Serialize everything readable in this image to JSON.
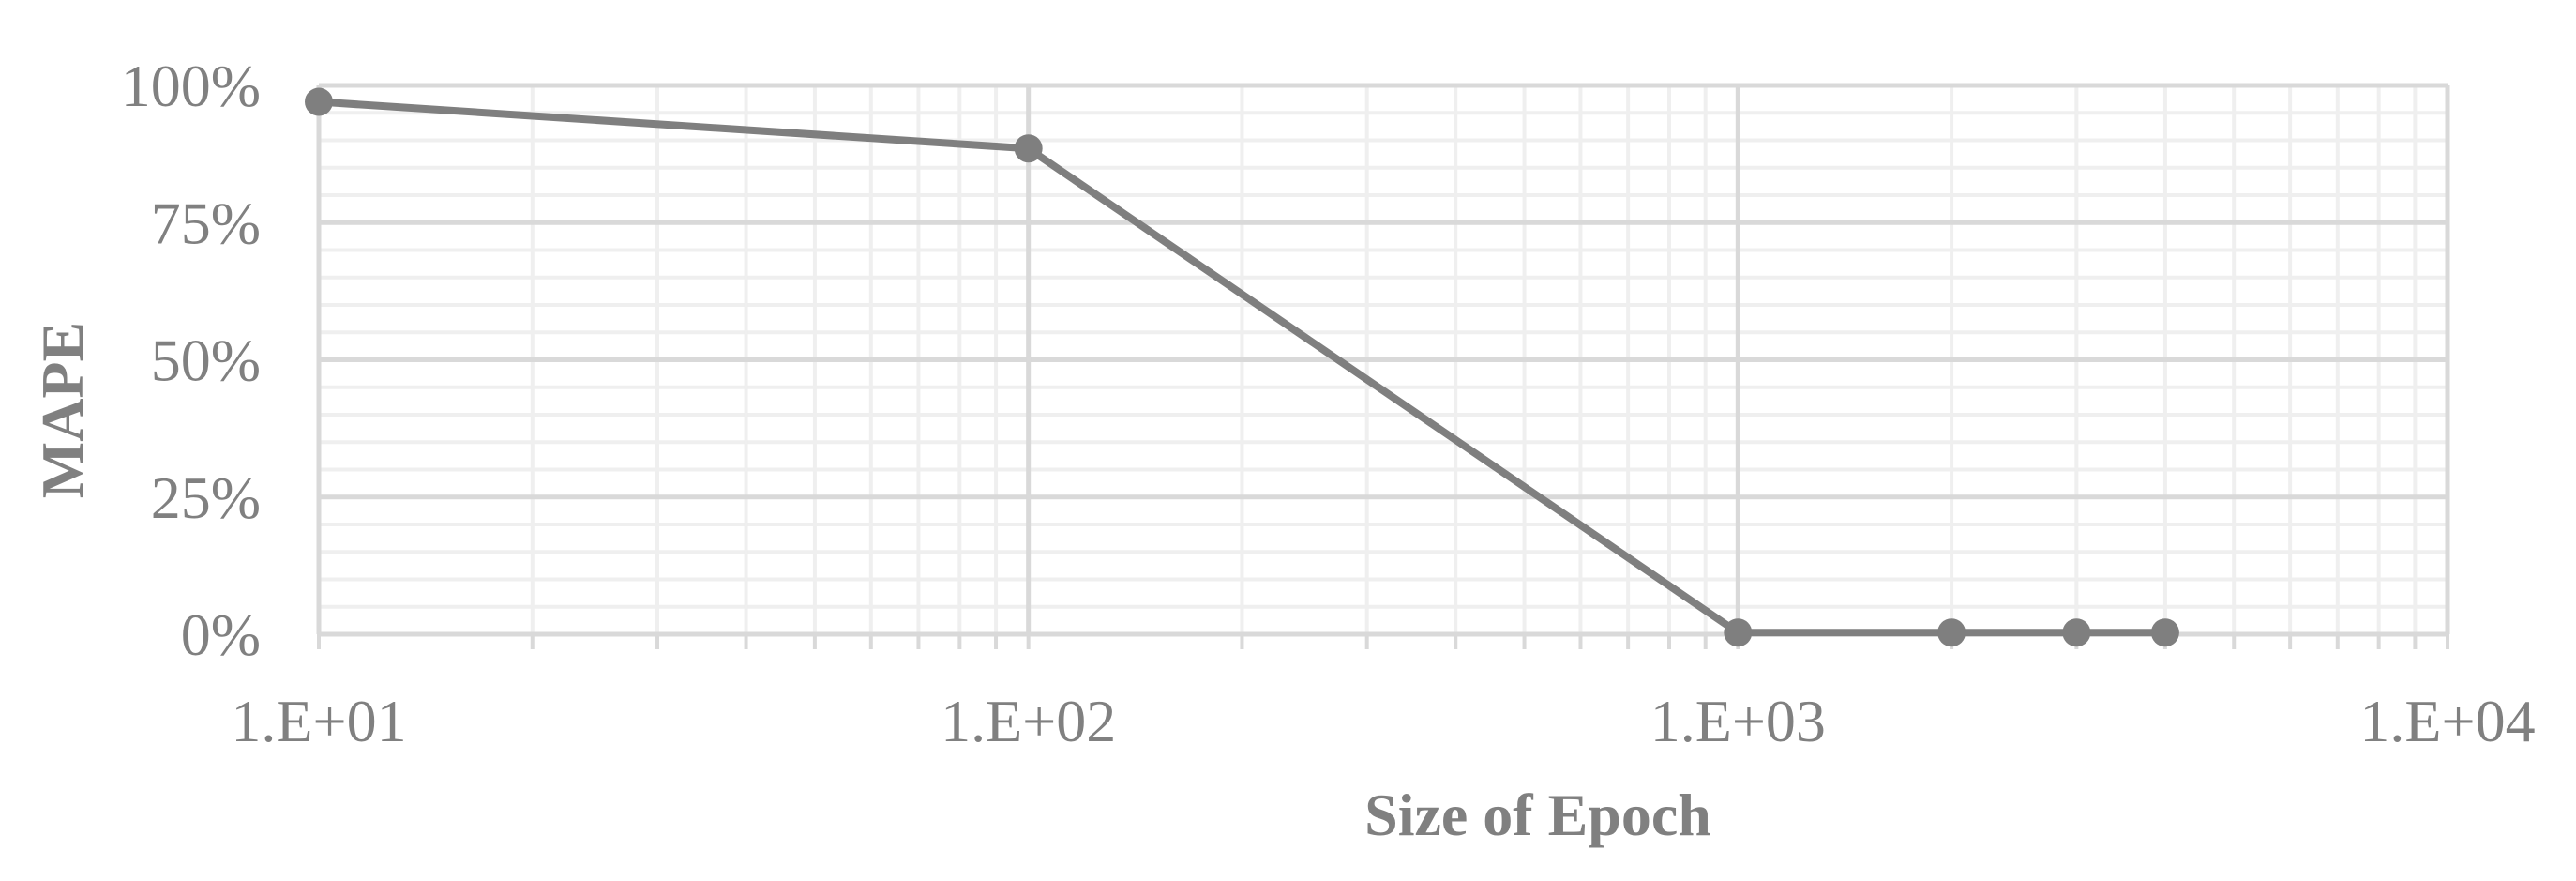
{
  "chart_data": {
    "type": "line",
    "title": "",
    "xlabel": "Size of Epoch",
    "ylabel": "MAPE",
    "x_scale": "log",
    "xlim": [
      10,
      10000
    ],
    "ylim": [
      0,
      1
    ],
    "x_tick_labels": [
      "1.E+01",
      "1.E+02",
      "1.E+03",
      "1.E+04"
    ],
    "y_tick_labels": [
      "0%",
      "25%",
      "50%",
      "75%",
      "100%"
    ],
    "grid": true,
    "legend": "none",
    "series": [
      {
        "x": [
          10,
          100,
          1000,
          2000,
          3000,
          4000
        ],
        "y": [
          0.97,
          0.885,
          0.003,
          0.003,
          0.003,
          0.003
        ]
      }
    ],
    "colors": {
      "line": "#7f7f7f",
      "marker": "#7f7f7f",
      "grid_major": "#d9d9d9",
      "grid_minor": "#efefef",
      "text": "#808080"
    }
  }
}
